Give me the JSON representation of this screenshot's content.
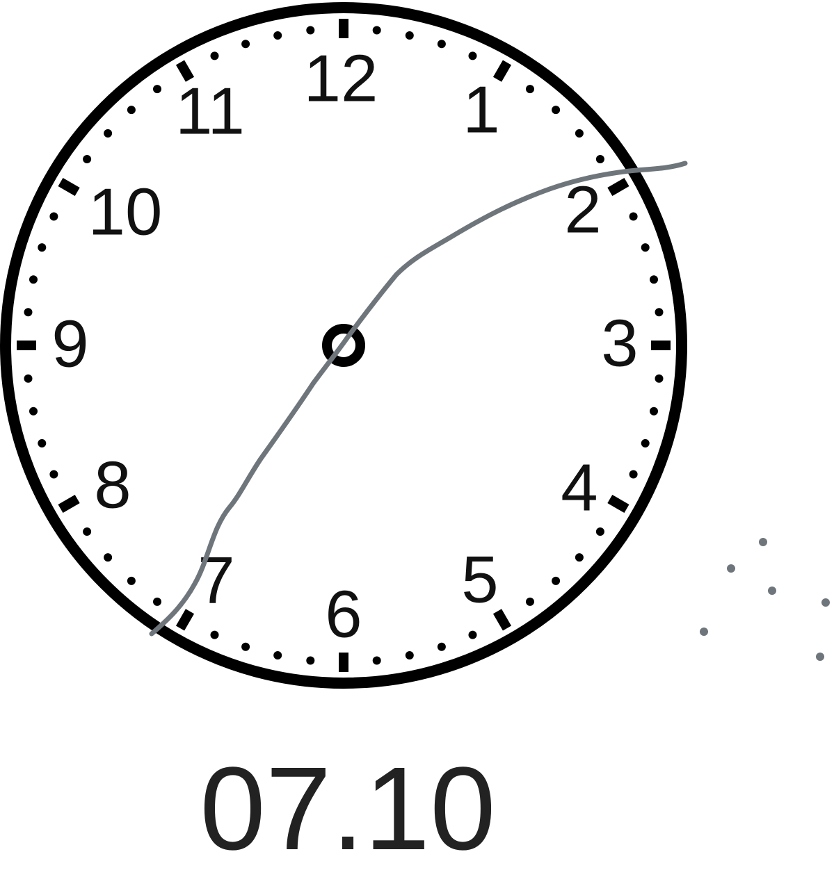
{
  "clock": {
    "numerals": [
      "12",
      "1",
      "2",
      "3",
      "4",
      "5",
      "6",
      "7",
      "8",
      "9",
      "10",
      "11"
    ],
    "colors": {
      "face": "#ffffff",
      "rim": "#000000",
      "numerals": "#111111",
      "ticks": "#000000"
    }
  },
  "sketch": {
    "stroke_color": "#6e767c",
    "dots_color": "#6e767c"
  },
  "time_text": "07.10"
}
